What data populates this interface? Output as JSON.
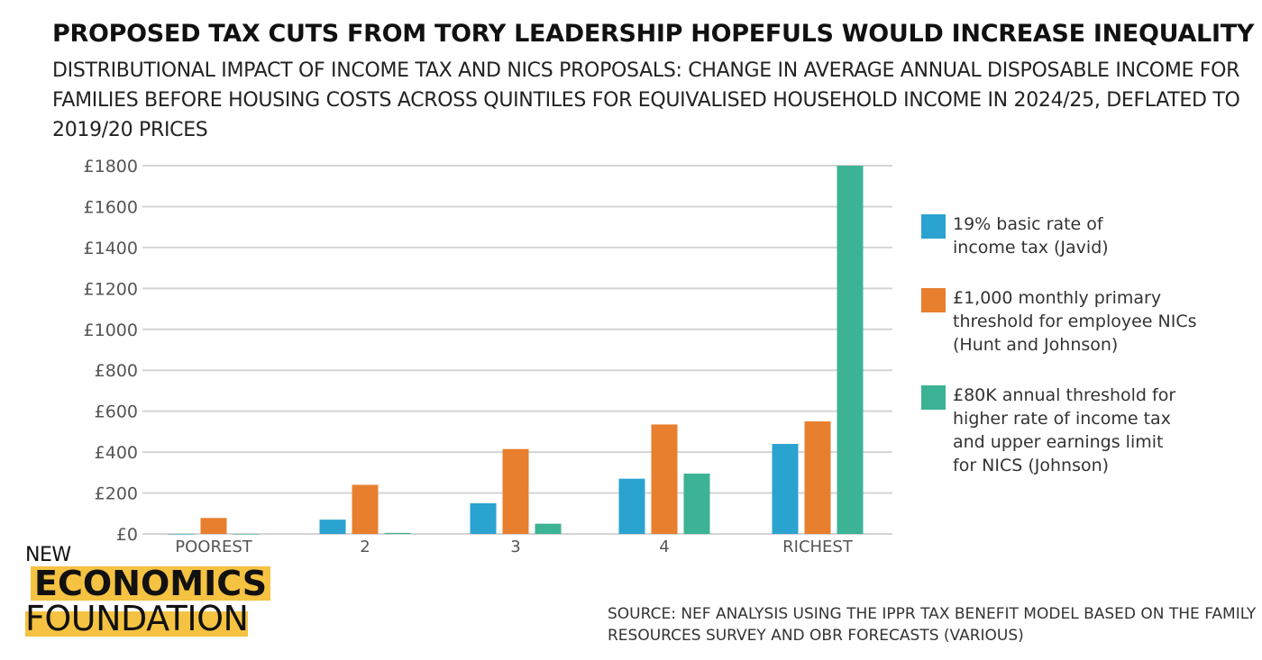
{
  "title": "PROPOSED TAX CUTS FROM TORY LEADERSHIP HOPEFULS WOULD INCREASE INEQUALITY",
  "subtitle": "DISTRIBUTIONAL IMPACT OF INCOME TAX AND NICS PROPOSALS: CHANGE IN AVERAGE ANNUAL DISPOSABLE INCOME FOR FAMILIES BEFORE HOUSING COSTS ACROSS QUINTILES FOR EQUIVALISED HOUSEHOLD INCOME IN 2024/25, DEFLATED TO 2019/20 PRICES",
  "source": "SOURCE: NEF ANALYSIS USING THE IPPR TAX BENEFIT MODEL BASED ON THE FAMILY RESOURCES SURVEY AND OBR FORECASTS (VARIOUS)",
  "logo": {
    "line1": "NEW",
    "line2": "ECONOMICS",
    "line3": "FOUNDATION",
    "accent": "#f5c242"
  },
  "chart_data": {
    "type": "bar",
    "title": "PROPOSED TAX CUTS FROM TORY LEADERSHIP HOPEFULS WOULD INCREASE INEQUALITY",
    "xlabel": "",
    "ylabel": "",
    "categories": [
      "POOREST",
      "2",
      "3",
      "4",
      "RICHEST"
    ],
    "ylim": [
      0,
      1800
    ],
    "yticks": [
      0,
      200,
      400,
      600,
      800,
      1000,
      1200,
      1400,
      1600,
      1800
    ],
    "ytick_labels": [
      "£0",
      "£200",
      "£400",
      "£600",
      "£800",
      "£1000",
      "£1200",
      "£1400",
      "£1600",
      "£1800"
    ],
    "grid": true,
    "legend_position": "right",
    "series": [
      {
        "name": "19% basic rate of income tax (Javid)",
        "color": "#2ba3d1",
        "values": [
          0,
          70,
          150,
          270,
          440
        ]
      },
      {
        "name": "£1,000 monthly primary threshold for employee NICs (Hunt and Johnson)",
        "color": "#e77f2e",
        "values": [
          78,
          240,
          415,
          535,
          550
        ]
      },
      {
        "name": "£80K annual threshold for higher rate of income tax and upper earnings limit for NICS (Johnson)",
        "color": "#3bb394",
        "values": [
          0,
          5,
          50,
          295,
          1800
        ]
      }
    ]
  }
}
